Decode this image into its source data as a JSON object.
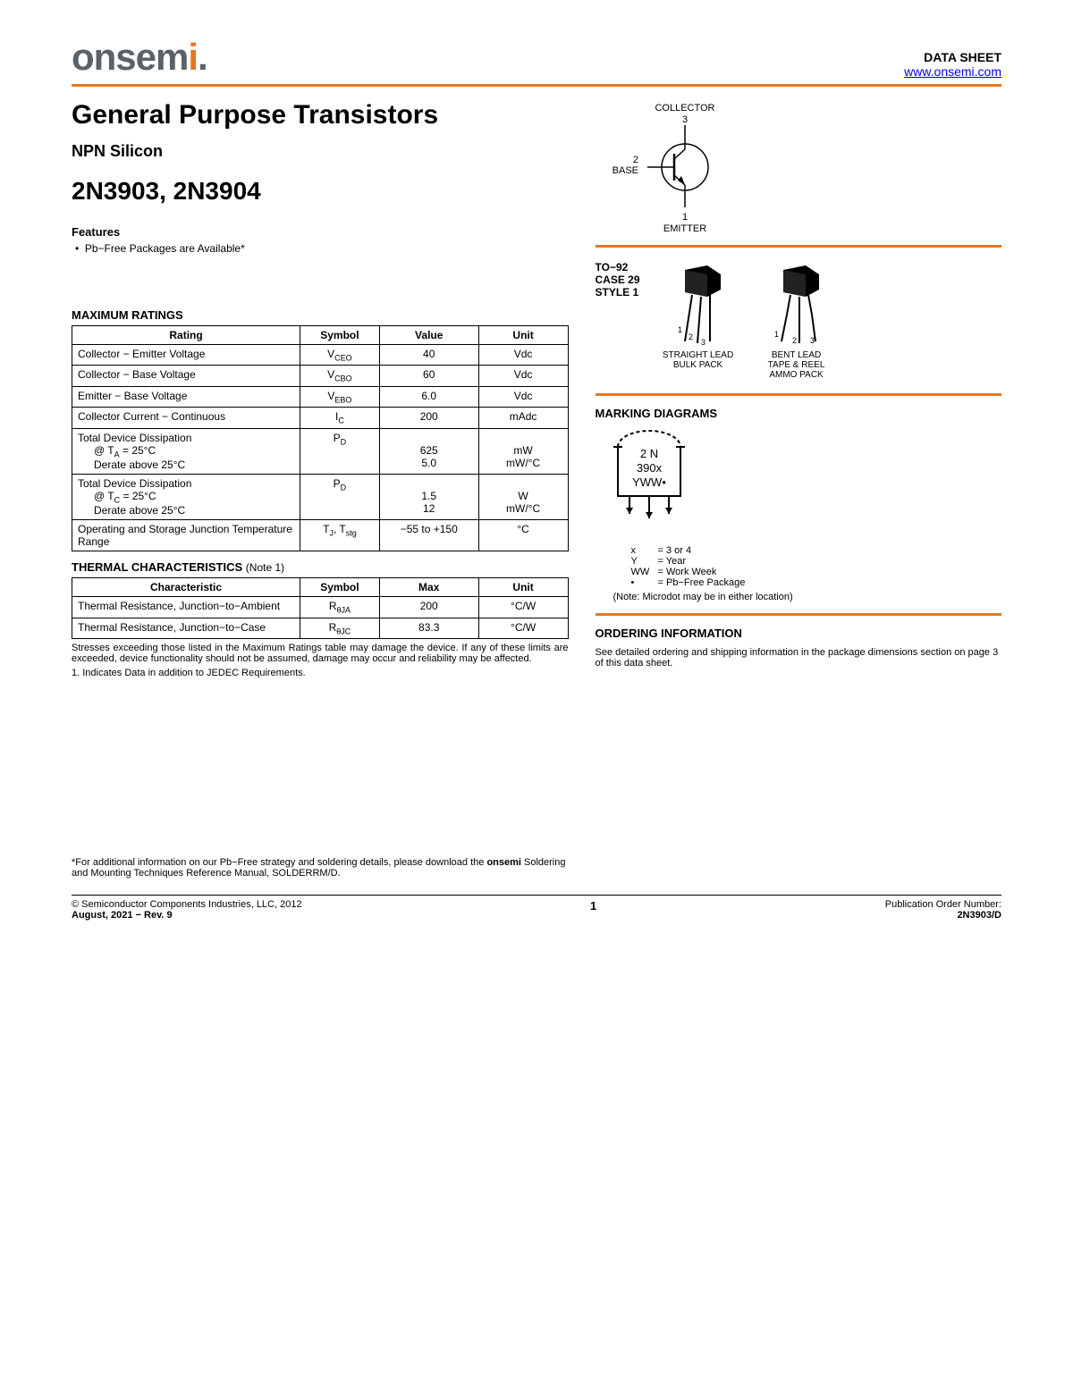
{
  "header": {
    "logo_main": "onsem",
    "logo_accent": "i",
    "datasheet_label": "DATA SHEET",
    "url": "www.onsemi.com"
  },
  "title": "General Purpose Transistors",
  "subtitle": "NPN Silicon",
  "part_numbers": "2N3903, 2N3904",
  "features": {
    "heading": "Features",
    "items": [
      "Pb−Free Packages are Available*"
    ]
  },
  "max_ratings": {
    "heading": "MAXIMUM RATINGS",
    "columns": [
      "Rating",
      "Symbol",
      "Value",
      "Unit"
    ],
    "rows": [
      {
        "rating": "Collector − Emitter Voltage",
        "symbol": "V<sub class='sub'>CEO</sub>",
        "value": "40",
        "unit": "Vdc"
      },
      {
        "rating": "Collector − Base Voltage",
        "symbol": "V<sub class='sub'>CBO</sub>",
        "value": "60",
        "unit": "Vdc"
      },
      {
        "rating": "Emitter − Base Voltage",
        "symbol": "V<sub class='sub'>EBO</sub>",
        "value": "6.0",
        "unit": "Vdc"
      },
      {
        "rating": "Collector Current − Continuous",
        "symbol": "I<sub class='sub'>C</sub>",
        "value": "200",
        "unit": "mAdc"
      },
      {
        "rating": "Total Device Dissipation<span class='indent'>@ T<sub class='sub'>A</sub> = 25°C</span><span class='indent'>Derate above 25°C</span>",
        "symbol": "P<sub class='sub'>D</sub>",
        "value": "<br>625<br>5.0",
        "unit": "<br>mW<br>mW/°C"
      },
      {
        "rating": "Total Device Dissipation<span class='indent'>@ T<sub class='sub'>C</sub> = 25°C</span><span class='indent'>Derate above 25°C</span>",
        "symbol": "P<sub class='sub'>D</sub>",
        "value": "<br>1.5<br>12",
        "unit": "<br>W<br>mW/°C"
      },
      {
        "rating": "Operating and Storage Junction Temperature Range",
        "symbol": "T<sub class='sub'>J</sub>, T<sub class='sub'>stg</sub>",
        "value": "−55 to +150",
        "unit": "°C"
      }
    ]
  },
  "thermal": {
    "heading": "THERMAL CHARACTERISTICS",
    "note": "(Note 1)",
    "columns": [
      "Characteristic",
      "Symbol",
      "Max",
      "Unit"
    ],
    "rows": [
      {
        "char": "Thermal Resistance, Junction−to−Ambient",
        "symbol": "R<sub class='sub'>θJA</sub>",
        "max": "200",
        "unit": "°C/W"
      },
      {
        "char": "Thermal Resistance, Junction−to−Case",
        "symbol": "R<sub class='sub'>θJC</sub>",
        "max": "83.3",
        "unit": "°C/W"
      }
    ],
    "stress_note": "Stresses exceeding those listed in the Maximum Ratings table may damage the device. If any of these limits are exceeded, device functionality should not be assumed, damage may occur and reliability may be affected.",
    "note1": "1.  Indicates Data in addition to JEDEC Requirements."
  },
  "footnote": "*For additional information on our Pb−Free strategy and soldering details, please download the <b>onsemi</b> Soldering and Mounting Techniques Reference Manual, SOLDERRM/D.",
  "symbol": {
    "collector": "COLLECTOR",
    "collector_pin": "3",
    "base": "BASE",
    "base_pin": "2",
    "emitter": "EMITTER",
    "emitter_pin": "1"
  },
  "package": {
    "case_label": "TO−92\nCASE 29\nSTYLE 1",
    "straight": "STRAIGHT LEAD\nBULK PACK",
    "bent": "BENT LEAD\nTAPE & REEL\nAMMO PACK",
    "pins": [
      "1",
      "2",
      "3"
    ]
  },
  "marking": {
    "heading": "MARKING DIAGRAMS",
    "line1": "2 N",
    "line2": "390x",
    "line3": "YWW•",
    "legend": [
      {
        "k": "x",
        "v": "= 3 or 4"
      },
      {
        "k": "Y",
        "v": "= Year"
      },
      {
        "k": "WW",
        "v": "= Work Week"
      },
      {
        "k": "•",
        "v": "= Pb−Free Package"
      }
    ],
    "note": "(Note: Microdot may be in either location)"
  },
  "ordering": {
    "heading": "ORDERING INFORMATION",
    "text": "See detailed ordering and shipping information in the package dimensions section on page 3 of this data sheet."
  },
  "footer": {
    "copyright": "©  Semiconductor Components Industries, LLC, 2012",
    "date_rev": "August, 2021 − Rev. 9",
    "page": "1",
    "pub_label": "Publication Order Number:",
    "pub_num": "2N3903/D"
  },
  "colors": {
    "accent": "#e87722"
  }
}
